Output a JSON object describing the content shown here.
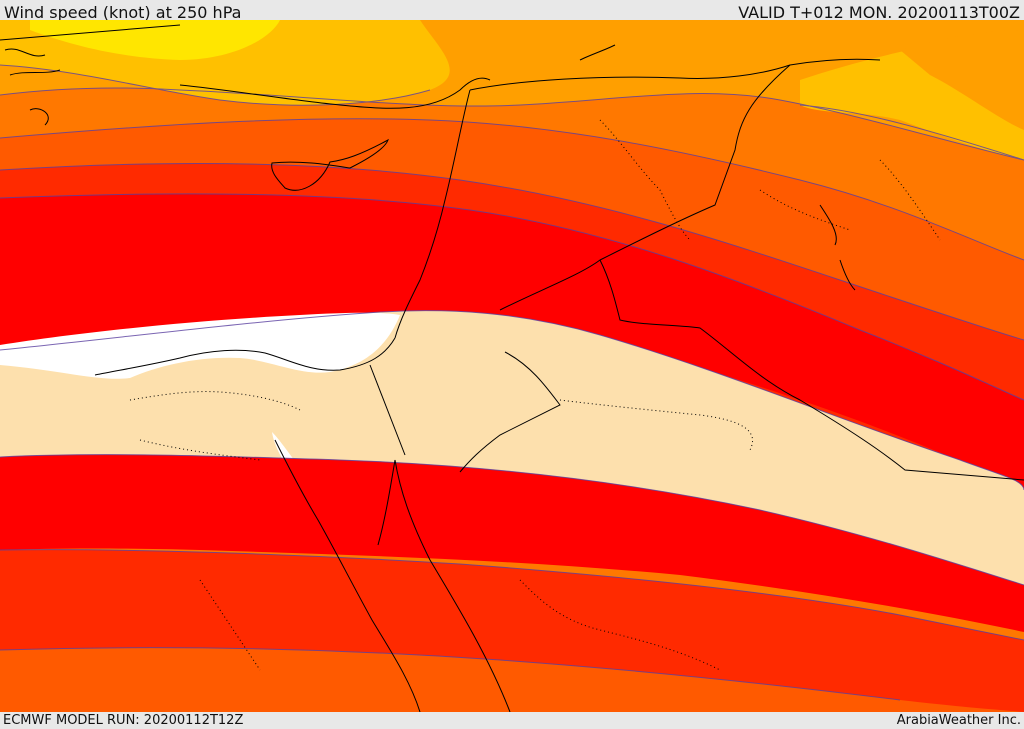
{
  "header": {
    "title": "Wind speed (knot) at 250 hPa",
    "valid": "VALID T+012 MON. 20200113T00Z"
  },
  "footer": {
    "model_run": "ECMWF MODEL RUN: 20200112T12Z",
    "credit": "ArabiaWeather Inc."
  },
  "map": {
    "colors": {
      "yellow": "#ffe600",
      "gold": "#ffc000",
      "light_orange": "#ff9f00",
      "orange": "#ff7800",
      "dark_orange": "#ff5a00",
      "red_orange": "#ff2a00",
      "red": "#ff0000",
      "calm": "#fde0ad",
      "white": "#ffffff",
      "contour_line": "#5a3fa0",
      "coast_line": "#000000"
    }
  }
}
